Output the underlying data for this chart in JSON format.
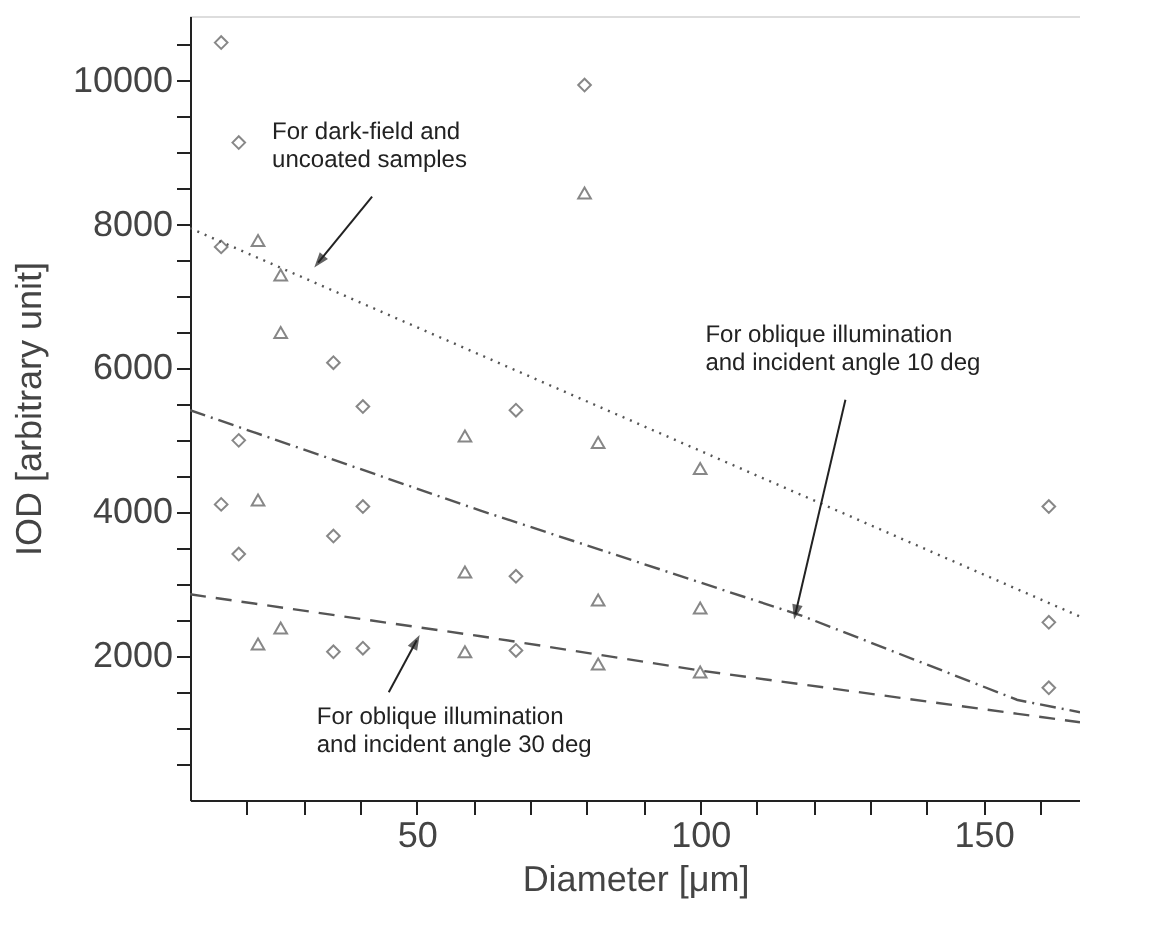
{
  "chart_data": {
    "type": "scatter",
    "xlabel": "Diameter [μm]",
    "ylabel": "IOD [arbitrary unit]",
    "xlim": [
      10,
      167
    ],
    "ylim": [
      0,
      10900
    ],
    "xticks": [
      {
        "value": 20,
        "label": null
      },
      {
        "value": 30,
        "label": null
      },
      {
        "value": 40,
        "label": null
      },
      50,
      {
        "value": 60,
        "label": null
      },
      {
        "value": 70,
        "label": null
      },
      {
        "value": 80,
        "label": null
      },
      {
        "value": 90,
        "label": null
      },
      100,
      {
        "value": 110,
        "label": null
      },
      {
        "value": 120,
        "label": null
      },
      {
        "value": 130,
        "label": null
      },
      {
        "value": 140,
        "label": null
      },
      150,
      {
        "value": 160,
        "label": null
      }
    ],
    "yticks": [
      {
        "value": 500,
        "label": null
      },
      {
        "value": 1000,
        "label": null
      },
      {
        "value": 1500,
        "label": null
      },
      2000,
      {
        "value": 2500,
        "label": null
      },
      {
        "value": 3000,
        "label": null
      },
      {
        "value": 3500,
        "label": null
      },
      4000,
      {
        "value": 4500,
        "label": null
      },
      {
        "value": 5000,
        "label": null
      },
      {
        "value": 5500,
        "label": null
      },
      6000,
      {
        "value": 6500,
        "label": null
      },
      {
        "value": 7000,
        "label": null
      },
      {
        "value": 7500,
        "label": null
      },
      8000,
      {
        "value": 8500,
        "label": null
      },
      {
        "value": 9000,
        "label": null
      },
      {
        "value": 9500,
        "label": null
      },
      10000,
      {
        "value": 10500,
        "label": null
      }
    ],
    "grid": false,
    "series": [
      {
        "marker": "diamond",
        "color": "#555555",
        "x": [
          15.5,
          18.6,
          15.5,
          35.3,
          40.5,
          18.6,
          67.5,
          79.6,
          15.5,
          18.6,
          40.5,
          35.3,
          35.3,
          40.5,
          67.5,
          67.5,
          161.5,
          161.5,
          161.5
        ],
        "values": [
          10530,
          9140,
          7690,
          6080,
          5470,
          5000,
          5420,
          9940,
          4110,
          3420,
          4080,
          3670,
          2060,
          2110,
          3110,
          2080,
          4080,
          2470,
          1560
        ]
      },
      {
        "marker": "triangle",
        "color": "#555555",
        "x": [
          22,
          26,
          26,
          58.5,
          79.6,
          82,
          100,
          22,
          58.5,
          22,
          26,
          58.5,
          82,
          100,
          82,
          100
        ],
        "values": [
          7780,
          7300,
          6500,
          5060,
          8440,
          4970,
          4610,
          4170,
          3170,
          2170,
          2390,
          2060,
          2780,
          2670,
          1890,
          1780
        ]
      },
      {
        "type": "line",
        "line_style": "dotted",
        "color": "#555555",
        "x": [
          10,
          167
        ],
        "values": [
          7950,
          2550
        ]
      },
      {
        "type": "line",
        "line_style": "dashdot",
        "color": "#555555",
        "x": [
          10,
          61,
          118,
          156,
          167
        ],
        "values": [
          5420,
          4030,
          2560,
          1390,
          1220
        ]
      },
      {
        "type": "line",
        "line_style": "dashed",
        "color": "#555555",
        "x": [
          10,
          61,
          100,
          167
        ],
        "values": [
          2860,
          2280,
          1800,
          1080
        ]
      }
    ],
    "annotations": [
      {
        "text": "For dark-field and\nuncoated samples",
        "x": 32.6,
        "y": 7470
      },
      {
        "text": "For oblique illumination\nand incident angle 10 deg",
        "x": 116.8,
        "y": 2590
      },
      {
        "text": "For oblique illumination\nand incident angle 30 deg",
        "x": 50,
        "y": 2220
      }
    ]
  }
}
